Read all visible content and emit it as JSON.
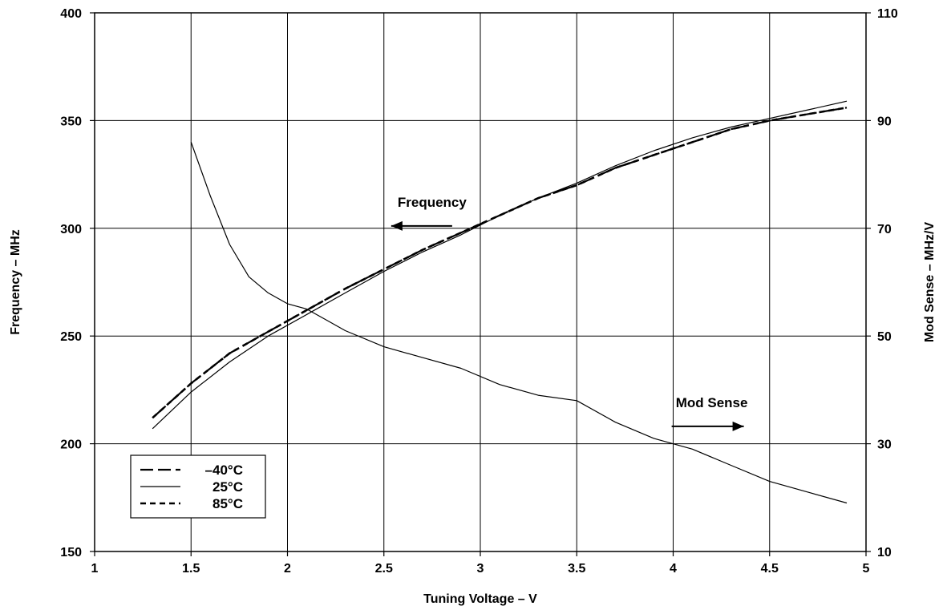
{
  "chart_data": {
    "type": "line",
    "xlabel": "Tuning Voltage – V",
    "ylabel_left": "Frequency – MHz",
    "ylabel_right": "Mod Sense – MHz/V",
    "xlim": [
      1,
      5
    ],
    "ylim_left": [
      150,
      400
    ],
    "ylim_right": [
      10,
      110
    ],
    "x_ticks": [
      "1",
      "1.5",
      "2",
      "2.5",
      "3",
      "3.5",
      "4",
      "4.5",
      "5"
    ],
    "y_left_ticks": [
      "150",
      "200",
      "250",
      "300",
      "350",
      "400"
    ],
    "y_right_ticks": [
      "10",
      "30",
      "50",
      "70",
      "90",
      "110"
    ],
    "grid": true,
    "legend_placement": "bottom-left",
    "legend": [
      {
        "label": "–40°C",
        "style": "long-dash"
      },
      {
        "label": "25°C",
        "style": "solid"
      },
      {
        "label": "85°C",
        "style": "short-dash"
      }
    ],
    "annotations": [
      {
        "text": "Frequency",
        "arrow": "left",
        "x": 2.75,
        "y_left": 310
      },
      {
        "text": "Mod Sense",
        "arrow": "right",
        "x": 4.2,
        "y_left": 217
      }
    ],
    "series": [
      {
        "name": "–40°C",
        "axis": "left",
        "style": "long-dash",
        "x": [
          1.3,
          1.5,
          1.7,
          1.9,
          2.1,
          2.3,
          2.5,
          2.7,
          2.9,
          3.1,
          3.3,
          3.5,
          3.7,
          3.9,
          4.1,
          4.3,
          4.5,
          4.7,
          4.9
        ],
        "y": [
          212,
          228,
          242,
          252,
          262,
          272,
          281,
          290,
          298,
          306,
          314,
          320,
          328,
          334,
          340,
          346,
          350,
          353,
          356
        ]
      },
      {
        "name": "25°C",
        "axis": "left",
        "style": "solid",
        "x": [
          1.3,
          1.5,
          1.7,
          1.9,
          2.1,
          2.3,
          2.5,
          2.7,
          2.9,
          3.1,
          3.3,
          3.5,
          3.7,
          3.9,
          4.1,
          4.3,
          4.5,
          4.7,
          4.9
        ],
        "y": [
          207,
          224,
          238,
          250,
          260,
          270,
          280,
          289,
          297,
          306,
          314,
          321,
          329,
          336,
          342,
          347,
          351,
          355,
          359
        ]
      },
      {
        "name": "85°C",
        "axis": "left",
        "style": "short-dash",
        "x": [
          1.3,
          1.5,
          1.7,
          1.9,
          2.1,
          2.3,
          2.5,
          2.7,
          2.9,
          3.1,
          3.3,
          3.5,
          3.7,
          3.9,
          4.1,
          4.3,
          4.5,
          4.7,
          4.9
        ],
        "y": [
          212,
          228,
          242,
          252,
          262,
          272,
          281,
          290,
          298,
          306,
          314,
          320,
          328,
          334,
          340,
          346,
          350,
          353,
          356
        ]
      },
      {
        "name": "Mod Sense 25°C",
        "axis": "right",
        "style": "solid",
        "x": [
          1.5,
          1.6,
          1.7,
          1.8,
          1.9,
          2.0,
          2.1,
          2.2,
          2.3,
          2.5,
          2.7,
          2.9,
          3.1,
          3.3,
          3.5,
          3.7,
          3.9,
          4.1,
          4.3,
          4.5,
          4.7,
          4.9
        ],
        "y": [
          86,
          76,
          67,
          61,
          58,
          56,
          55,
          53,
          51,
          48,
          46,
          44,
          41,
          39,
          38,
          34,
          31,
          29,
          26,
          23,
          21,
          19
        ]
      }
    ]
  }
}
